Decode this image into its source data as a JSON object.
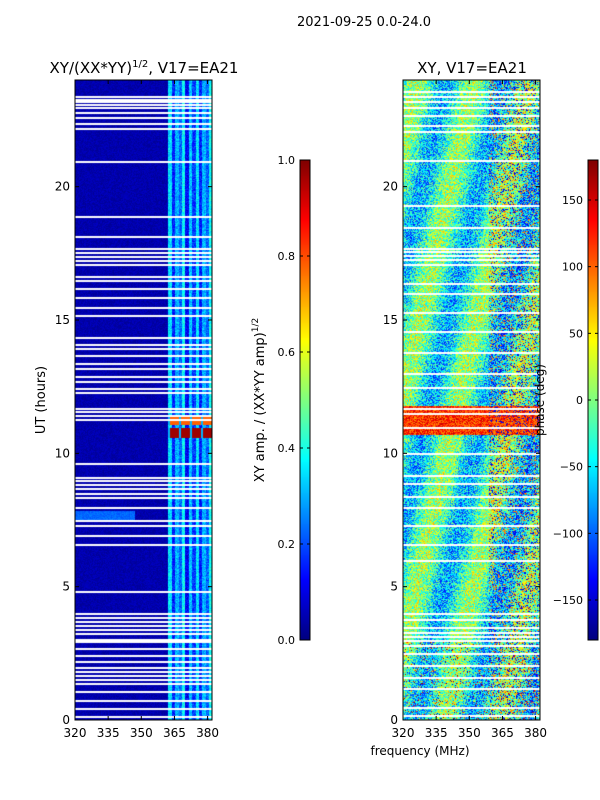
{
  "suptitle": "2021-09-25 0.0-24.0",
  "shared_xlabel": "frequency (MHz)",
  "chart_data": [
    {
      "type": "heatmap",
      "title": "XY/(XX*YY)",
      "title_sup": "1/2",
      "title_suffix": ", V17=EA21",
      "ylabel": "UT (hours)",
      "xlim": [
        320,
        382
      ],
      "ylim": [
        0,
        24
      ],
      "xticks": [
        320,
        335,
        350,
        365,
        380
      ],
      "yticks": [
        0,
        5,
        10,
        15,
        20
      ],
      "colormap": "jet",
      "colorbar": {
        "label": "XY amp. / (XX*YY amp)",
        "label_sup": "1/2",
        "range": [
          0.0,
          1.0
        ],
        "ticks": [
          "0.0",
          "0.2",
          "0.4",
          "0.6",
          "0.8",
          "1.0"
        ]
      },
      "background_value": 0.02,
      "bright_band_mhz": [
        362,
        382
      ],
      "bright_band_value": 0.28,
      "bright_band_rows_hours": [
        [
          11.1,
          11.4,
          0.78
        ],
        [
          10.6,
          10.95,
          0.97
        ]
      ],
      "flag_rows_hours": [
        0.15,
        0.45,
        0.75,
        1.1,
        1.4,
        1.55,
        1.7,
        1.85,
        2.0,
        2.2,
        2.45,
        2.7,
        2.95,
        3.05,
        3.25,
        3.4,
        3.55,
        3.7,
        3.85,
        4.0,
        4.85,
        6.6,
        6.95,
        7.3,
        7.5,
        8.0,
        8.35,
        8.5,
        8.7,
        8.85,
        9.0,
        9.1,
        9.65,
        11.3,
        11.45,
        11.6,
        11.7,
        12.3,
        12.45,
        12.7,
        12.9,
        13.2,
        13.4,
        13.7,
        13.95,
        14.1,
        14.35,
        15.2,
        15.5,
        15.85,
        16.2,
        16.5,
        16.65,
        17.1,
        17.25,
        17.4,
        17.55,
        17.7,
        18.15,
        18.9,
        20.95,
        22.2,
        22.4,
        22.6,
        22.8,
        23.0,
        23.1,
        23.2,
        23.3,
        23.4
      ]
    },
    {
      "type": "heatmap",
      "title": "XY, V17=EA21",
      "ylabel": "",
      "xlim": [
        320,
        382
      ],
      "ylim": [
        0,
        24
      ],
      "xticks": [
        320,
        335,
        350,
        365,
        380
      ],
      "yticks": [
        0,
        5,
        10,
        15,
        20
      ],
      "colormap": "jet",
      "colorbar": {
        "label": "phase (deg)",
        "range": [
          -180,
          180
        ],
        "ticks": [
          "-150",
          "-100",
          "-50",
          "0",
          "50",
          "100",
          "150"
        ]
      },
      "flag_rows_hours": [
        0.2,
        0.5,
        1.2,
        1.6,
        2.05,
        2.5,
        2.8,
        3.0,
        3.15,
        3.3,
        3.5,
        3.8,
        4.0,
        6.0,
        6.6,
        7.3,
        8.0,
        8.4,
        8.9,
        9.2,
        10.0,
        11.0,
        11.5,
        11.7,
        12.5,
        13.0,
        13.8,
        14.6,
        15.3,
        16.0,
        16.4,
        17.1,
        17.3,
        17.45,
        17.6,
        17.7,
        18.5,
        19.3,
        21.0,
        22.1,
        22.3,
        22.7,
        23.0,
        23.2,
        23.4,
        23.6
      ]
    }
  ]
}
